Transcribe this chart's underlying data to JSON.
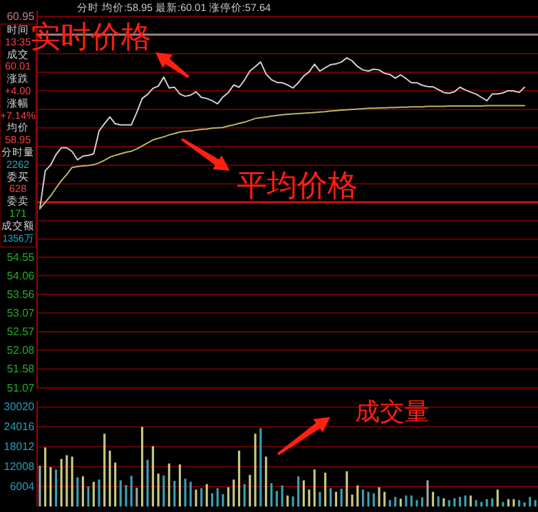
{
  "chart_data": [
    {
      "type": "line",
      "title": "分时 均价:58.95 最新:60.01 涨停价:57.64",
      "categories": [
        null,
        null,
        null,
        null,
        null,
        null,
        null,
        null,
        null,
        null,
        null,
        null,
        null,
        null,
        null,
        null,
        null,
        null,
        null,
        null,
        null,
        null,
        null,
        null,
        null,
        null,
        null,
        null,
        null,
        null,
        null,
        null,
        null,
        null,
        null,
        null,
        null,
        null,
        null,
        null,
        null,
        null,
        null,
        null,
        null,
        null,
        null,
        null,
        null,
        null,
        null,
        null,
        null,
        null,
        null,
        null,
        null,
        null,
        null,
        null,
        null,
        null,
        null,
        null,
        null,
        null,
        null,
        null,
        null,
        null,
        null,
        null,
        null,
        null,
        null,
        null,
        null,
        null,
        null,
        null,
        null,
        null,
        null,
        null,
        null,
        null,
        null,
        null,
        null,
        null,
        null,
        null,
        null
      ],
      "ylim": [
        51.07,
        60.95
      ],
      "tick_labels": "y",
      "grid": "y",
      "yticks": [
        60.95,
        {
          "value": 60.46,
          "label": null
        },
        {
          "value": 59.96,
          "label": null
        },
        {
          "value": 59.47,
          "label": null
        },
        {
          "value": 58.98,
          "label": null
        },
        {
          "value": 58.48,
          "label": null
        },
        {
          "value": 57.99,
          "label": null
        },
        {
          "value": 57.49,
          "label": null
        },
        {
          "value": 57.0,
          "label": null
        },
        {
          "value": 56.5,
          "label": null
        },
        {
          "value": 56.01,
          "label": null
        },
        {
          "value": 55.52,
          "label": null
        },
        {
          "value": 55.03,
          "label": null
        },
        54.55,
        54.06,
        53.56,
        53.07,
        52.57,
        52.08,
        51.58,
        51.07
      ],
      "ref_lines": [
        {
          "axis": "y",
          "value": 56.01,
          "color": "#d01010"
        },
        {
          "axis": "y",
          "value": 60.47,
          "color": "#a08080"
        }
      ],
      "series": [
        {
          "color": "#d0d0d0",
          "values": [
            55.84,
            56.85,
            57.0,
            57.28,
            57.46,
            57.46,
            57.36,
            57.14,
            57.24,
            57.26,
            57.3,
            57.91,
            58.1,
            58.28,
            58.1,
            58.07,
            58.07,
            58.07,
            58.4,
            58.77,
            58.88,
            59.04,
            59.1,
            59.34,
            59.05,
            59.07,
            58.89,
            58.83,
            58.86,
            58.95,
            58.8,
            58.77,
            58.71,
            58.63,
            58.81,
            58.93,
            59.13,
            59.07,
            59.26,
            59.5,
            59.62,
            59.74,
            59.42,
            59.27,
            59.2,
            59.19,
            59.13,
            59.05,
            59.19,
            59.37,
            59.48,
            59.68,
            59.5,
            59.59,
            59.67,
            59.69,
            59.74,
            59.85,
            59.77,
            59.62,
            59.53,
            59.5,
            59.55,
            59.53,
            59.44,
            59.41,
            59.31,
            59.4,
            59.3,
            59.19,
            59.19,
            59.12,
            59.09,
            59.08,
            59.01,
            58.93,
            58.91,
            58.95,
            59.07,
            59.0,
            58.94,
            58.89,
            58.8,
            58.71,
            58.89,
            58.89,
            58.92,
            58.98,
            58.97,
            58.93,
            59.07,
            null,
            null
          ]
        },
        {
          "color": "#b8b860",
          "values": [
            55.84,
            56.01,
            56.18,
            56.39,
            56.59,
            56.75,
            56.94,
            56.96,
            56.98,
            56.99,
            57.01,
            57.06,
            57.13,
            57.21,
            57.26,
            57.3,
            57.34,
            57.37,
            57.43,
            57.51,
            57.59,
            57.67,
            57.71,
            57.75,
            57.8,
            57.84,
            57.88,
            57.9,
            57.91,
            57.93,
            57.95,
            57.96,
            57.98,
            57.99,
            58.0,
            58.04,
            58.07,
            58.11,
            58.14,
            58.19,
            58.24,
            58.26,
            58.28,
            58.3,
            58.32,
            58.34,
            58.35,
            58.36,
            58.37,
            58.38,
            58.39,
            58.4,
            58.41,
            58.42,
            58.44,
            58.45,
            58.46,
            58.47,
            58.48,
            58.49,
            58.5,
            58.51,
            58.51,
            58.52,
            58.52,
            58.53,
            58.53,
            58.54,
            58.54,
            58.55,
            58.55,
            58.55,
            58.56,
            58.56,
            58.56,
            58.56,
            58.57,
            58.57,
            58.57,
            58.57,
            58.57,
            58.57,
            58.57,
            58.58,
            58.58,
            58.58,
            58.58,
            58.58,
            58.58,
            58.58,
            58.58,
            null,
            null
          ]
        }
      ],
      "annotations": [
        "时间",
        "13:35",
        "成交",
        "60.01",
        "涨跌",
        "+4.00",
        "涨幅",
        "+7.14%",
        "均价",
        "58.95",
        "分时量",
        "2262",
        "委买",
        "628",
        "委卖",
        "171",
        "成交额",
        "1356万",
        "实时价格",
        "平均价格"
      ]
    },
    {
      "type": "bar",
      "categories": [
        null,
        null,
        null,
        null,
        null,
        null,
        null,
        null,
        null,
        null,
        null,
        null,
        null,
        null,
        null,
        null,
        null,
        null,
        null,
        null,
        null,
        null,
        null,
        null,
        null,
        null,
        null,
        null,
        null,
        null,
        null,
        null,
        null,
        null,
        null,
        null,
        null,
        null,
        null,
        null,
        null,
        null,
        null,
        null,
        null,
        null,
        null,
        null,
        null,
        null,
        null,
        null,
        null,
        null,
        null,
        null,
        null,
        null,
        null,
        null,
        null,
        null,
        null,
        null,
        null,
        null,
        null,
        null,
        null,
        null,
        null,
        null,
        null,
        null,
        null,
        null,
        null,
        null,
        null,
        null,
        null,
        null,
        null,
        null,
        null,
        null,
        null,
        null,
        null,
        null,
        null,
        null,
        null
      ],
      "ylim": [
        0,
        30020
      ],
      "yticks": [
        6004,
        12008,
        18012,
        24016,
        30020
      ],
      "tick_labels": "y",
      "grid": "y",
      "values": [
        12282,
        17800,
        11870,
        11180,
        14350,
        15460,
        15040,
        8830,
        9110,
        6070,
        7450,
        8140,
        21940,
        16840,
        13250,
        7870,
        6490,
        9250,
        5660,
        24010,
        14080,
        18220,
        9940,
        9380,
        12970,
        7730,
        12700,
        8420,
        7450,
        5110,
        5520,
        6760,
        4000,
        5520,
        3730,
        5800,
        8140,
        16840,
        6760,
        9520,
        21940,
        23600,
        15040,
        7040,
        4690,
        6350,
        3310,
        3040,
        9110,
        7870,
        5110,
        11180,
        4420,
        10210,
        5520,
        4420,
        5380,
        10630,
        3590,
        6350,
        5110,
        4420,
        4000,
        5800,
        4420,
        1930,
        2900,
        2350,
        3310,
        3310,
        1930,
        2760,
        7870,
        4420,
        3040,
        2480,
        1930,
        2480,
        2900,
        3310,
        3310,
        1930,
        1380,
        2210,
        2480,
        5110,
        1380,
        2210,
        2210,
        1930,
        1240,
        2900,
        1930
      ],
      "colors": [
        "#a0a0a0",
        "#c8c880",
        "#c8c880",
        "#3a9fb0",
        "#c8c880",
        "#c8c880",
        "#c8c880",
        "#3a9fb0",
        "#c8c880",
        "#3a9fb0",
        "#c8c880",
        "#3a9fb0",
        "#c8c880",
        "#c8c880",
        "#c8c880",
        "#3a9fb0",
        "#3a9fb0",
        "#3a9fb0",
        "#a0a0a0",
        "#c8c880",
        "#3a9fb0",
        "#c8c880",
        "#c8c880",
        "#3a9fb0",
        "#c8c880",
        "#3a9fb0",
        "#c8c880",
        "#3a9fb0",
        "#3a9fb0",
        "#c8c880",
        "#3a9fb0",
        "#c8c880",
        "#3a9fb0",
        "#3a9fb0",
        "#3a9fb0",
        "#c8c880",
        "#c8c880",
        "#c8c880",
        "#3a9fb0",
        "#c8c880",
        "#c8c880",
        "#3a9fb0",
        "#c8c880",
        "#3a9fb0",
        "#3a9fb0",
        "#3a9fb0",
        "#c8c880",
        "#3a9fb0",
        "#3a9fb0",
        "#c8c880",
        "#c8c880",
        "#c8c880",
        "#3a9fb0",
        "#c8c880",
        "#3a9fb0",
        "#c8c880",
        "#3a9fb0",
        "#c8c880",
        "#c8c880",
        "#c8c880",
        "#3a9fb0",
        "#3a9fb0",
        "#3a9fb0",
        "#c8c880",
        "#c8c880",
        "#3a9fb0",
        "#3a9fb0",
        "#c8c880",
        "#3a9fb0",
        "#3a9fb0",
        "#3a9fb0",
        "#3a9fb0",
        "#a0a0a0",
        "#c8c880",
        "#3a9fb0",
        "#c8c880",
        "#3a9fb0",
        "#3a9fb0",
        "#3a9fb0",
        "#3a9fb0",
        "#c8c880",
        "#3a9fb0",
        "#3a9fb0",
        "#3a9fb0",
        "#3a9fb0",
        "#c8c880",
        "#3a9fb0",
        "#c8c880",
        "#c8c880",
        "#3a9fb0",
        "#3a9fb0",
        "#3a9fb0",
        "#3a9fb0"
      ],
      "annotations": [
        "成交量"
      ]
    }
  ]
}
